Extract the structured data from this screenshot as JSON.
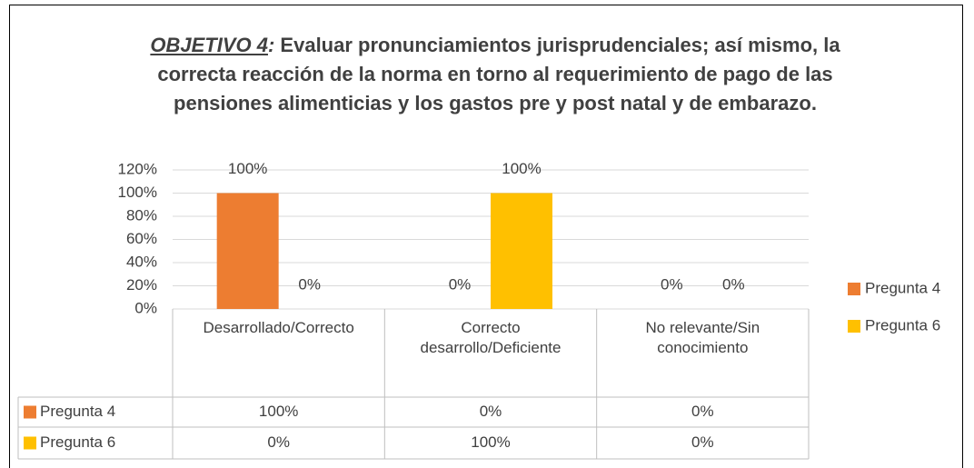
{
  "chart_data": {
    "type": "bar",
    "title": {
      "lead": "OBJETIVO 4",
      "sep": ":",
      "text": "Evaluar pronunciamientos jurisprudenciales; así mismo, la correcta reacción de la norma en torno al requerimiento de pago de las pensiones alimenticias y los gastos pre y post natal y de embarazo."
    },
    "categories": [
      "Desarrollado/Correcto",
      "Correcto desarrollo/Deficiente",
      "No relevante/Sin conocimiento"
    ],
    "series": [
      {
        "name": "Pregunta 4",
        "color": "#ED7D31",
        "values": [
          100,
          0,
          0
        ],
        "value_labels": [
          "100%",
          "0%",
          "0%"
        ]
      },
      {
        "name": "Pregunta 6",
        "color": "#FFC000",
        "values": [
          0,
          100,
          0
        ],
        "value_labels": [
          "0%",
          "100%",
          "0%"
        ]
      }
    ],
    "ylim": [
      0,
      120
    ],
    "yticks": [
      {
        "value": 0,
        "label": "0%"
      },
      {
        "value": 20,
        "label": "20%"
      },
      {
        "value": 40,
        "label": "40%"
      },
      {
        "value": 60,
        "label": "60%"
      },
      {
        "value": 80,
        "label": "80%"
      },
      {
        "value": 100,
        "label": "100%"
      },
      {
        "value": 120,
        "label": "120%"
      }
    ],
    "grid": true,
    "legend": "right",
    "data_table": true
  }
}
